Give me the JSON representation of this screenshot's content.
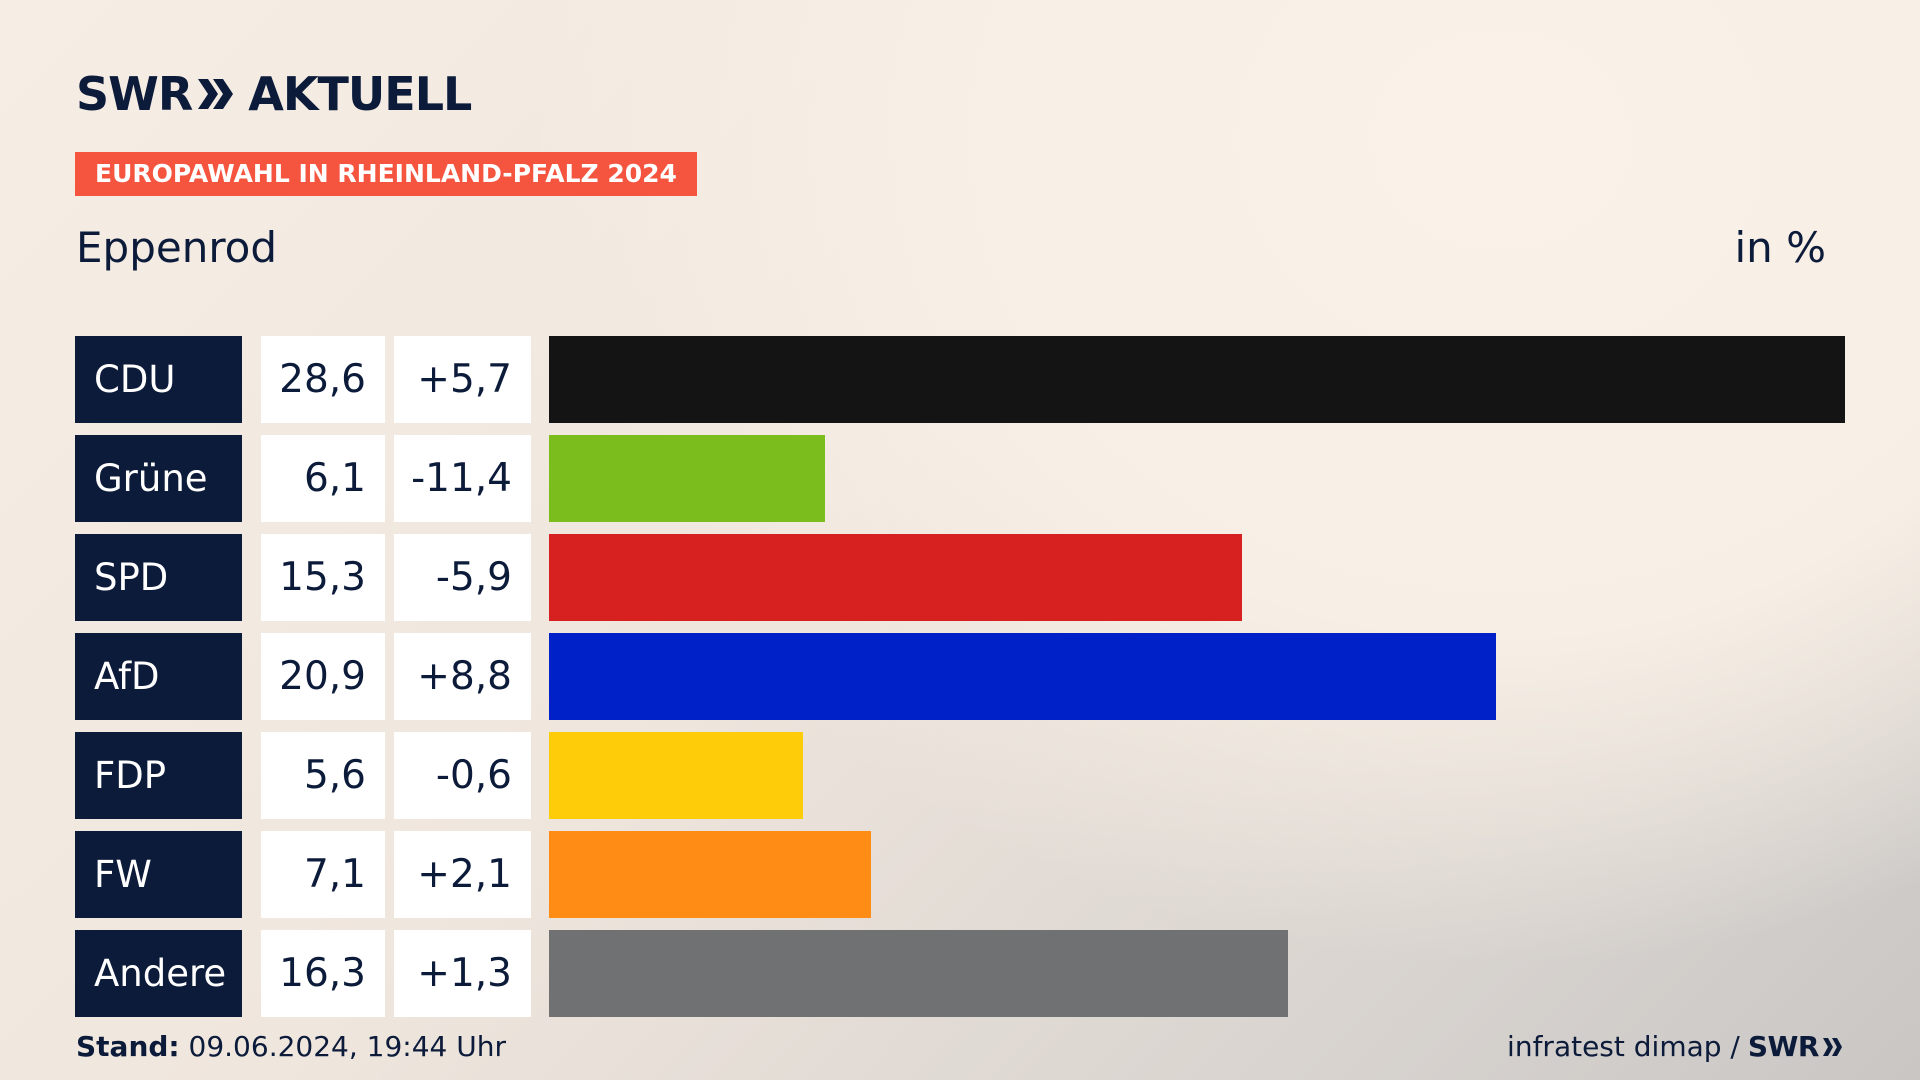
{
  "header": {
    "brand_left": "SWR",
    "brand_right": "AKTUELL",
    "badge": "EUROPAWAHL IN RHEINLAND-PFALZ 2024",
    "subtitle": "Eppenrod",
    "unit": "in %"
  },
  "footer": {
    "stand_label": "Stand:",
    "stand_value": "09.06.2024, 19:44 Uhr",
    "source": "infratest dimap /",
    "source_brand": "SWR"
  },
  "colors": {
    "navy": "#0c1b3a",
    "badge": "#f5553f"
  },
  "chart_data": {
    "type": "bar",
    "orientation": "horizontal",
    "categories": [
      "CDU",
      "Grüne",
      "SPD",
      "AfD",
      "FDP",
      "FW",
      "Andere"
    ],
    "values": [
      28.6,
      6.1,
      15.3,
      20.9,
      5.6,
      7.1,
      16.3
    ],
    "value_labels": [
      "28,6",
      "6,1",
      "15,3",
      "20,9",
      "5,6",
      "7,1",
      "16,3"
    ],
    "diff_labels": [
      "+5,7",
      "-11,4",
      "-5,9",
      "+8,8",
      "-0,6",
      "+2,1",
      "+1,3"
    ],
    "diffs": [
      5.7,
      -11.4,
      -5.9,
      8.8,
      -0.6,
      2.1,
      1.3
    ],
    "bar_colors": [
      "#141414",
      "#7bbd1d",
      "#d72020",
      "#0021c8",
      "#ffcc0a",
      "#ff8c14",
      "#707173"
    ],
    "xlim": [
      0,
      28.6
    ],
    "grid": false,
    "legend": "none"
  }
}
